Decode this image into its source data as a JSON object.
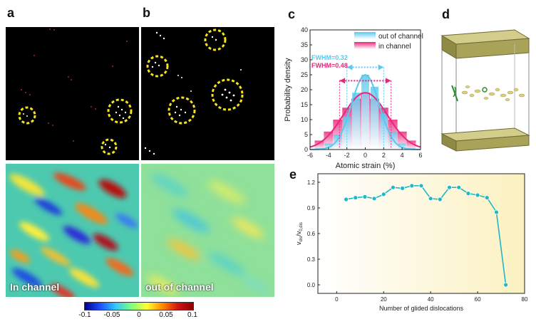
{
  "panels": {
    "a": "a",
    "b": "b",
    "c": "c",
    "d": "d",
    "e": "e"
  },
  "maps": {
    "in_channel_label": "In channel",
    "out_channel_label": "out of channel"
  },
  "colorbar": {
    "ticks": [
      "-0.1",
      "-0.05",
      "0",
      "0.05",
      "0.1"
    ],
    "colors": [
      "#00008b",
      "#1e50ff",
      "#32c8ff",
      "#7dff7d",
      "#ffff32",
      "#ff8c00",
      "#d21414",
      "#8b0000"
    ]
  },
  "chart_data": [
    {
      "type": "bar",
      "panel": "c",
      "xlabel": "Atomic strain (%)",
      "ylabel": "Probability density",
      "xlim": [
        -6,
        6
      ],
      "ylim": [
        0,
        40
      ],
      "xticks": [
        "-6",
        "-4",
        "-2",
        "0",
        "2",
        "4",
        "6"
      ],
      "yticks": [
        "0",
        "5",
        "10",
        "15",
        "20",
        "25",
        "30",
        "35",
        "40"
      ],
      "legend": [
        "out of channel",
        "in channel"
      ],
      "legend_placement": "top-right",
      "annotations": [
        "FWHM=0.32",
        "FWHM=0.48"
      ],
      "bin_centers": [
        -5,
        -4,
        -3,
        -2,
        -1,
        0,
        1,
        2,
        3,
        4,
        5
      ],
      "series": [
        {
          "name": "out of channel",
          "color": "#5bc8ef",
          "values": [
            0.5,
            2,
            5,
            11,
            19,
            25,
            21,
            12,
            6,
            2,
            0.5
          ]
        },
        {
          "name": "in channel",
          "color": "#e8267a",
          "values": [
            3,
            6,
            10,
            14,
            17,
            19,
            17,
            14,
            10,
            6,
            3
          ]
        }
      ]
    },
    {
      "type": "line",
      "panel": "e",
      "xlabel": "Number of glided dislocations",
      "ylabel": "v_dis/v_0,dis",
      "ylabel_main": "v",
      "ylabel_sub1": "dis",
      "ylabel_mid": "/v",
      "ylabel_sub2": "0,dis",
      "xlim": [
        -8,
        80
      ],
      "ylim": [
        -0.1,
        1.3
      ],
      "xticks": [
        "0",
        "20",
        "40",
        "60",
        "80"
      ],
      "yticks": [
        "0.0",
        "0.3",
        "0.6",
        "0.9",
        "1.2"
      ],
      "x": [
        4,
        8,
        12,
        16,
        20,
        24,
        28,
        32,
        36,
        40,
        44,
        48,
        52,
        56,
        60,
        64,
        68,
        72
      ],
      "y": [
        1.0,
        1.02,
        1.03,
        1.01,
        1.06,
        1.14,
        1.13,
        1.16,
        1.16,
        1.01,
        1.0,
        1.14,
        1.14,
        1.07,
        1.05,
        1.02,
        0.85,
        0.0
      ],
      "color": "#1fb8c4"
    }
  ]
}
